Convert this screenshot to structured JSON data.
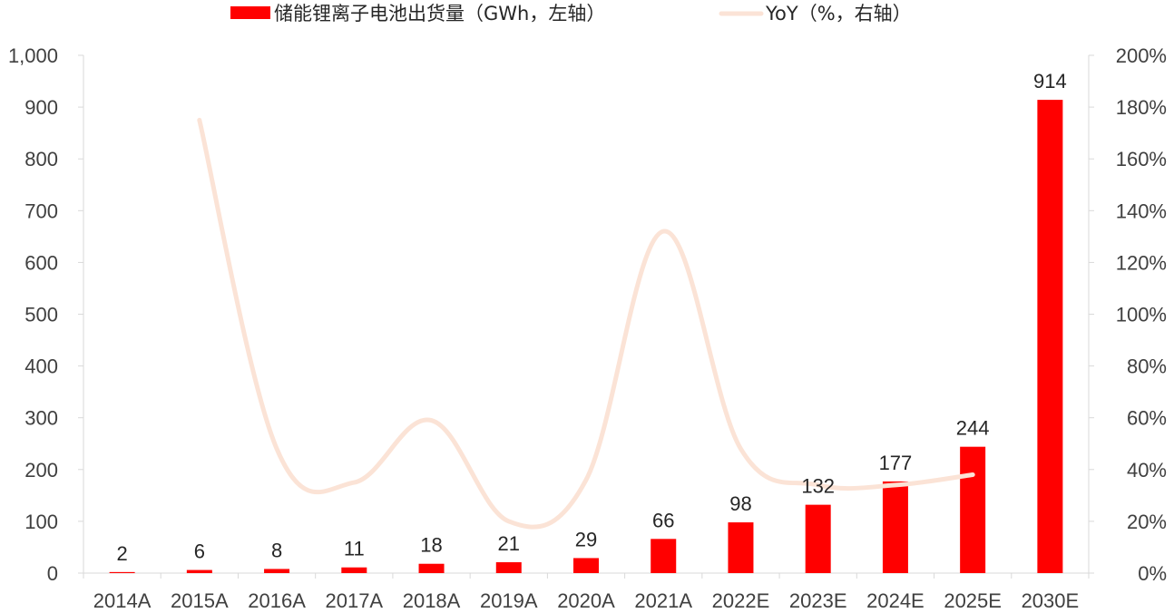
{
  "chart_data": {
    "type": "bar",
    "categories": [
      "2014A",
      "2015A",
      "2016A",
      "2017A",
      "2018A",
      "2019A",
      "2020A",
      "2021A",
      "2022E",
      "2023E",
      "2024E",
      "2025E",
      "2030E"
    ],
    "series": [
      {
        "name": "储能锂离子电池出货量（GWh，左轴）",
        "type": "bar",
        "axis": "left",
        "values": [
          2,
          6,
          8,
          11,
          18,
          21,
          29,
          66,
          98,
          132,
          177,
          244,
          914
        ],
        "color": "#ff0000"
      },
      {
        "name": "YoY（%，右轴）",
        "type": "line",
        "axis": "right",
        "values": [
          null,
          175,
          48,
          35,
          59,
          20,
          36,
          132,
          48,
          34,
          34,
          38,
          null
        ],
        "color": "#fbe3d6"
      }
    ],
    "y_left": {
      "min": 0,
      "max": 1000,
      "ticks": [
        "0",
        "100",
        "200",
        "300",
        "400",
        "500",
        "600",
        "700",
        "800",
        "900",
        "1,000"
      ]
    },
    "y_right": {
      "min": 0,
      "max": 200,
      "ticks": [
        "0%",
        "20%",
        "40%",
        "60%",
        "80%",
        "100%",
        "120%",
        "140%",
        "160%",
        "180%",
        "200%"
      ]
    },
    "legend_position": "top-center",
    "grid": false
  }
}
